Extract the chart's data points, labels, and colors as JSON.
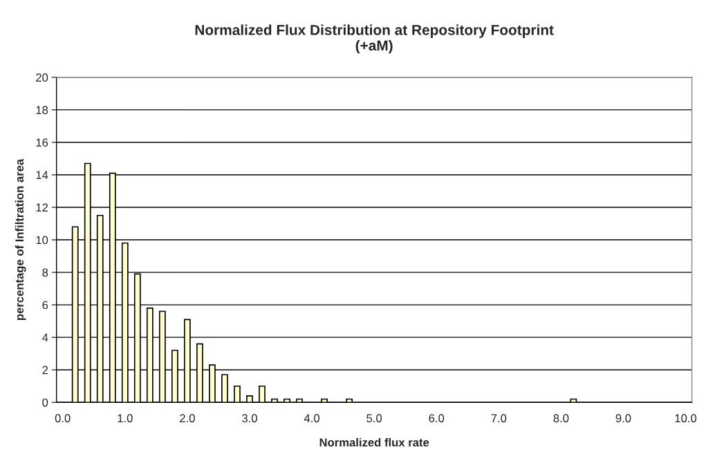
{
  "chart_data": {
    "type": "bar",
    "title": "Normalized Flux Distribution at Repository Footprint\n(+aM)",
    "xlabel": "Normalized flux rate",
    "ylabel": "percentage of Infiltration area",
    "categories": [
      "0.0",
      null,
      null,
      null,
      null,
      "1.0",
      null,
      null,
      null,
      null,
      "2.0",
      null,
      null,
      null,
      null,
      "3.0",
      null,
      null,
      null,
      null,
      "4.0",
      null,
      null,
      null,
      null,
      "5.0",
      null,
      null,
      null,
      null,
      "6.0",
      null,
      null,
      null,
      null,
      "7.0",
      null,
      null,
      null,
      null,
      "8.0",
      null,
      null,
      null,
      null,
      "9.0",
      null,
      null,
      null,
      null,
      "10.0"
    ],
    "values": [
      null,
      10.8,
      14.7,
      11.5,
      14.1,
      9.8,
      7.9,
      5.8,
      5.6,
      3.2,
      5.1,
      3.6,
      2.3,
      1.7,
      1.0,
      0.4,
      1.0,
      0.2,
      0.2,
      0.2,
      null,
      0.2,
      null,
      0.2,
      null,
      null,
      null,
      null,
      null,
      null,
      null,
      null,
      null,
      null,
      null,
      null,
      null,
      null,
      null,
      null,
      null,
      0.2,
      null,
      null,
      null,
      null,
      null,
      null,
      null,
      null,
      null
    ],
    "color": "#ffffcc",
    "ylim": [
      0,
      20
    ],
    "yticks": [
      0,
      2,
      4,
      6,
      8,
      10,
      12,
      14,
      16,
      18,
      20
    ],
    "grid": "y",
    "legend": false
  }
}
